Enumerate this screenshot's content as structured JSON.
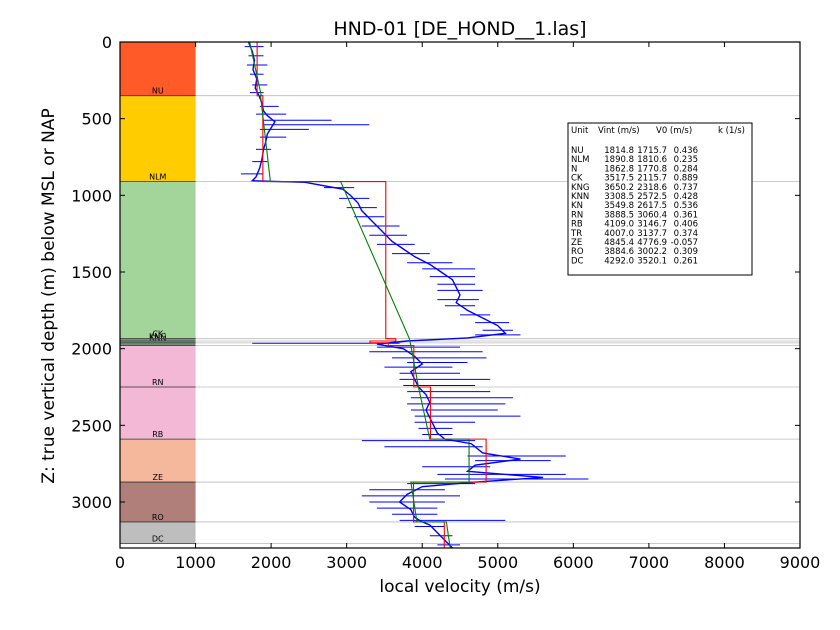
{
  "chart_data": {
    "type": "line",
    "title": "HND-01 [DE_HOND__1.las]",
    "xlabel": "local velocity (m/s)",
    "ylabel": "Z: true vertical depth (m) below MSL or NAP",
    "xlim": [
      0,
      9000
    ],
    "ylim": [
      3300,
      0
    ],
    "y_inverted": true,
    "xticks": [
      0,
      1000,
      2000,
      3000,
      4000,
      5000,
      6000,
      7000,
      8000,
      9000
    ],
    "yticks": [
      0,
      500,
      1000,
      1500,
      2000,
      2500,
      3000
    ],
    "grid": false,
    "colors": {
      "log": "#0000ff",
      "interval_velocity": "#ff0000",
      "fitted_model": "#008000",
      "boundary": "#bbbbbb"
    },
    "units": [
      {
        "name": "NU",
        "top": 0,
        "bottom": 350,
        "color": "#ff5a28",
        "show_label": true
      },
      {
        "name": "NLM",
        "top": 350,
        "bottom": 910,
        "color": "#ffcc00",
        "show_label": true
      },
      {
        "name": "N",
        "top": 910,
        "bottom": 912,
        "color": "#f0e68c",
        "show_label": false
      },
      {
        "name": "CK",
        "top": 912,
        "bottom": 1935,
        "color": "#a3d49a",
        "show_label": true
      },
      {
        "name": "KNG",
        "top": 1935,
        "bottom": 1950,
        "color": "#6f9e7a",
        "show_label": true
      },
      {
        "name": "KNN",
        "top": 1950,
        "bottom": 1960,
        "color": "#6f9e7a",
        "show_label": true
      },
      {
        "name": "KN",
        "top": 1960,
        "bottom": 1980,
        "color": "#6f8f7a",
        "show_label": false
      },
      {
        "name": "RN",
        "top": 1980,
        "bottom": 2250,
        "color": "#f2b8d6",
        "show_label": true
      },
      {
        "name": "RB",
        "top": 2250,
        "bottom": 2590,
        "color": "#f2b8d6",
        "show_label": true
      },
      {
        "name": "ZE",
        "top": 2590,
        "bottom": 2870,
        "color": "#f5b89c",
        "show_label": true
      },
      {
        "name": "RO",
        "top": 2870,
        "bottom": 3130,
        "color": "#b07f7a",
        "show_label": true
      },
      {
        "name": "DC",
        "top": 3130,
        "bottom": 3270,
        "color": "#bebebe",
        "show_label": true
      }
    ],
    "boundaries": [
      350,
      910,
      1935,
      1950,
      1962,
      1980,
      2250,
      2590,
      2870,
      3130,
      3270
    ],
    "interval_velocity": [
      {
        "unit": "NU",
        "top": 0,
        "bottom": 350,
        "v": 1814.8
      },
      {
        "unit": "NLM",
        "top": 350,
        "bottom": 910,
        "v": 1890.8
      },
      {
        "unit": "CK",
        "top": 910,
        "bottom": 1935,
        "v": 3517.5
      },
      {
        "unit": "KNG",
        "top": 1935,
        "bottom": 1950,
        "v": 3650.2
      },
      {
        "unit": "KNN",
        "top": 1950,
        "bottom": 1962,
        "v": 3308.5
      },
      {
        "unit": "KN",
        "top": 1962,
        "bottom": 1980,
        "v": 3549.8
      },
      {
        "unit": "RN",
        "top": 1980,
        "bottom": 2250,
        "v": 3888.5
      },
      {
        "unit": "RB",
        "top": 2250,
        "bottom": 2590,
        "v": 4109.0
      },
      {
        "unit": "ZE",
        "top": 2590,
        "bottom": 2870,
        "v": 4845.4
      },
      {
        "unit": "RO",
        "top": 2870,
        "bottom": 3130,
        "v": 3884.6
      },
      {
        "unit": "DC",
        "top": 3130,
        "bottom": 3300,
        "v": 4292.0
      }
    ],
    "fitted_model": [
      {
        "unit": "NU",
        "top": 0,
        "bottom": 350,
        "v_top": 1715.7,
        "v_bottom": 1870
      },
      {
        "unit": "NLM",
        "top": 350,
        "bottom": 910,
        "v_top": 1860,
        "v_bottom": 1990
      },
      {
        "unit": "CK",
        "top": 910,
        "bottom": 1935,
        "v_top": 2920,
        "v_bottom": 3830
      },
      {
        "unit": "RN",
        "top": 1980,
        "bottom": 2250,
        "v_top": 3850,
        "v_bottom": 3950
      },
      {
        "unit": "RB",
        "top": 2250,
        "bottom": 2590,
        "v_top": 3950,
        "v_bottom": 4100
      },
      {
        "unit": "ZE",
        "top": 2590,
        "bottom": 2870,
        "v_top": 4620,
        "v_bottom": 4620
      },
      {
        "unit": "RO",
        "top": 2870,
        "bottom": 3130,
        "v_top": 3850,
        "v_bottom": 3930
      },
      {
        "unit": "DC",
        "top": 3130,
        "bottom": 3300,
        "v_top": 4320,
        "v_bottom": 4370
      }
    ],
    "log_profile": [
      [
        0,
        1700
      ],
      [
        60,
        1750
      ],
      [
        120,
        1780
      ],
      [
        180,
        1760
      ],
      [
        240,
        1810
      ],
      [
        300,
        1790
      ],
      [
        350,
        1840
      ],
      [
        400,
        1880
      ],
      [
        450,
        1900
      ],
      [
        480,
        1950
      ],
      [
        520,
        2050
      ],
      [
        560,
        2000
      ],
      [
        600,
        1950
      ],
      [
        650,
        1930
      ],
      [
        700,
        1900
      ],
      [
        760,
        1880
      ],
      [
        820,
        1850
      ],
      [
        880,
        1800
      ],
      [
        905,
        1750
      ],
      [
        915,
        2450
      ],
      [
        960,
        2950
      ],
      [
        1000,
        3050
      ],
      [
        1050,
        3150
      ],
      [
        1100,
        3200
      ],
      [
        1150,
        3300
      ],
      [
        1200,
        3400
      ],
      [
        1250,
        3500
      ],
      [
        1300,
        3600
      ],
      [
        1350,
        3750
      ],
      [
        1400,
        3900
      ],
      [
        1450,
        4100
      ],
      [
        1500,
        4250
      ],
      [
        1550,
        4400
      ],
      [
        1600,
        4450
      ],
      [
        1650,
        4500
      ],
      [
        1700,
        4450
      ],
      [
        1750,
        4600
      ],
      [
        1800,
        4800
      ],
      [
        1850,
        5000
      ],
      [
        1900,
        5100
      ],
      [
        1930,
        4600
      ],
      [
        1950,
        3800
      ],
      [
        1970,
        3400
      ],
      [
        2000,
        3750
      ],
      [
        2050,
        3900
      ],
      [
        2100,
        4000
      ],
      [
        2150,
        3850
      ],
      [
        2200,
        3900
      ],
      [
        2250,
        3950
      ],
      [
        2300,
        4050
      ],
      [
        2350,
        4100
      ],
      [
        2400,
        4050
      ],
      [
        2450,
        4100
      ],
      [
        2500,
        4150
      ],
      [
        2550,
        4200
      ],
      [
        2590,
        4300
      ],
      [
        2620,
        4650
      ],
      [
        2680,
        4800
      ],
      [
        2720,
        5300
      ],
      [
        2760,
        4700
      ],
      [
        2800,
        4600
      ],
      [
        2840,
        5600
      ],
      [
        2870,
        4700
      ],
      [
        2900,
        4000
      ],
      [
        2950,
        3800
      ],
      [
        3000,
        3700
      ],
      [
        3050,
        3850
      ],
      [
        3100,
        3900
      ],
      [
        3130,
        4000
      ],
      [
        3150,
        4100
      ],
      [
        3200,
        4200
      ],
      [
        3250,
        4300
      ],
      [
        3300,
        4400
      ]
    ],
    "log_spikes": [
      [
        30,
        1650,
        1900
      ],
      [
        90,
        1700,
        1900
      ],
      [
        150,
        1680,
        1950
      ],
      [
        210,
        1720,
        1900
      ],
      [
        280,
        1750,
        1950
      ],
      [
        330,
        1720,
        1900
      ],
      [
        420,
        1850,
        2100
      ],
      [
        470,
        1800,
        2200
      ],
      [
        510,
        1900,
        2800
      ],
      [
        540,
        1900,
        3300
      ],
      [
        570,
        1850,
        2500
      ],
      [
        620,
        1850,
        2200
      ],
      [
        700,
        1800,
        2000
      ],
      [
        780,
        1750,
        1950
      ],
      [
        860,
        1600,
        1900
      ],
      [
        950,
        2700,
        3100
      ],
      [
        1020,
        2900,
        3300
      ],
      [
        1080,
        3000,
        3400
      ],
      [
        1140,
        3100,
        3500
      ],
      [
        1200,
        3200,
        3700
      ],
      [
        1260,
        3300,
        3800
      ],
      [
        1320,
        3400,
        3900
      ],
      [
        1380,
        3600,
        4100
      ],
      [
        1440,
        3800,
        4400
      ],
      [
        1480,
        4000,
        4700
      ],
      [
        1530,
        4100,
        4700
      ],
      [
        1580,
        4200,
        4700
      ],
      [
        1620,
        4200,
        4800
      ],
      [
        1680,
        4200,
        4750
      ],
      [
        1720,
        4300,
        4700
      ],
      [
        1780,
        4500,
        4900
      ],
      [
        1830,
        4700,
        5150
      ],
      [
        1880,
        4800,
        5200
      ],
      [
        1910,
        4700,
        5300
      ],
      [
        1965,
        1750,
        3700
      ],
      [
        1990,
        3400,
        4500
      ],
      [
        2020,
        3300,
        4800
      ],
      [
        2060,
        3600,
        4850
      ],
      [
        2090,
        3800,
        4600
      ],
      [
        2120,
        3500,
        4400
      ],
      [
        2160,
        3700,
        4500
      ],
      [
        2200,
        3700,
        4900
      ],
      [
        2240,
        3750,
        4700
      ],
      [
        2280,
        3800,
        4900
      ],
      [
        2320,
        3850,
        5200
      ],
      [
        2360,
        3800,
        5100
      ],
      [
        2400,
        3850,
        5000
      ],
      [
        2440,
        3900,
        5300
      ],
      [
        2480,
        3900,
        4700
      ],
      [
        2520,
        3950,
        4400
      ],
      [
        2560,
        4000,
        4400
      ],
      [
        2600,
        3200,
        4700
      ],
      [
        2640,
        3500,
        4800
      ],
      [
        2700,
        4600,
        5900
      ],
      [
        2730,
        4700,
        5700
      ],
      [
        2770,
        4000,
        4900
      ],
      [
        2820,
        4200,
        5900
      ],
      [
        2850,
        4300,
        6200
      ],
      [
        2880,
        3800,
        4700
      ],
      [
        2920,
        3300,
        4300
      ],
      [
        2960,
        3200,
        4500
      ],
      [
        3000,
        3300,
        4300
      ],
      [
        3040,
        3400,
        4200
      ],
      [
        3080,
        3600,
        4200
      ],
      [
        3120,
        3700,
        5100
      ],
      [
        3160,
        3900,
        4300
      ],
      [
        3220,
        4100,
        4400
      ],
      [
        3280,
        4200,
        4500
      ]
    ],
    "table_header": [
      "Unit",
      "Vint (m/s)",
      "V0 (m/s)",
      "k (1/s)"
    ],
    "table_rows": [
      [
        "NU",
        "1814.8",
        "1715.7",
        "0.436"
      ],
      [
        "NLM",
        "1890.8",
        "1810.6",
        "0.235"
      ],
      [
        "N",
        "1862.8",
        "1770.8",
        "0.284"
      ],
      [
        "CK",
        "3517.5",
        "2115.7",
        "0.889"
      ],
      [
        "KNG",
        "3650.2",
        "2318.6",
        "0.737"
      ],
      [
        "KNN",
        "3308.5",
        "2572.5",
        "0.428"
      ],
      [
        "KN",
        "3549.8",
        "2617.5",
        "0.536"
      ],
      [
        "RN",
        "3888.5",
        "3060.4",
        "0.361"
      ],
      [
        "RB",
        "4109.0",
        "3146.7",
        "0.406"
      ],
      [
        "TR",
        "4007.0",
        "3137.7",
        "0.374"
      ],
      [
        "ZE",
        "4845.4",
        "4776.9",
        "-0.057"
      ],
      [
        "RO",
        "3884.6",
        "3002.2",
        "0.309"
      ],
      [
        "DC",
        "4292.0",
        "3520.1",
        "0.261"
      ]
    ]
  }
}
